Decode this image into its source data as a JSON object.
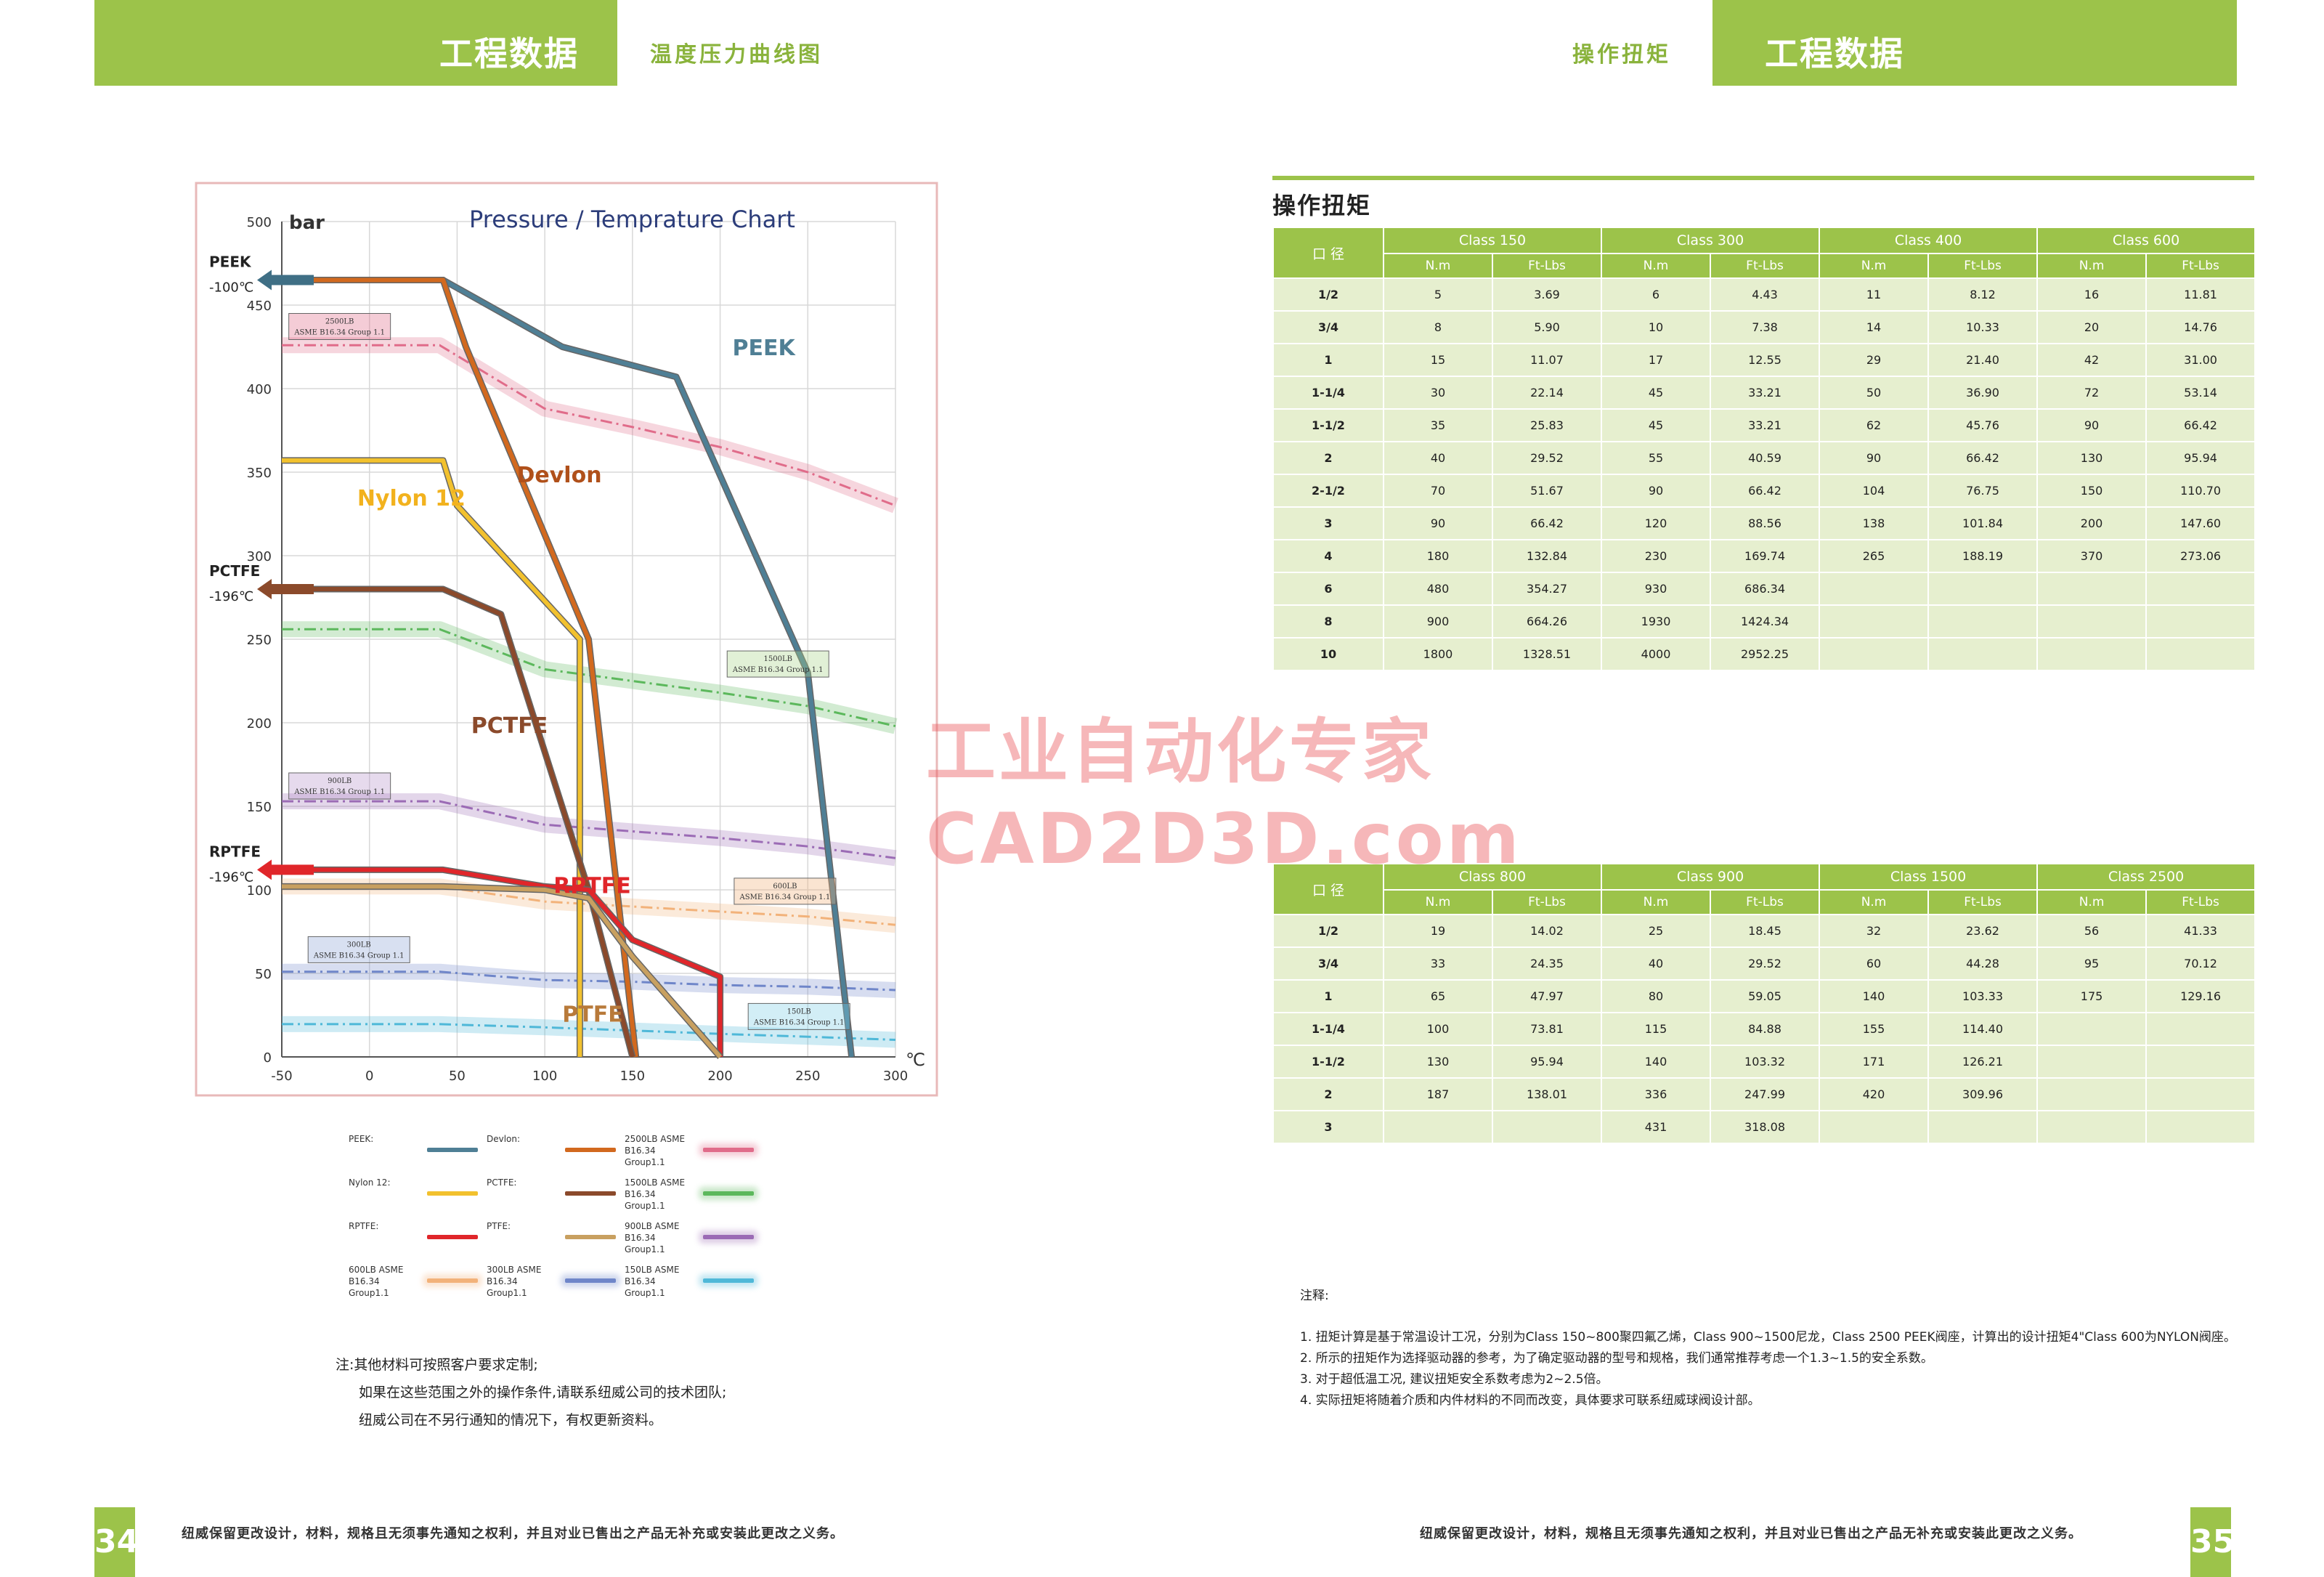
{
  "left_page": {
    "header_title": "工程数据",
    "header_subtitle": "温度压力曲线图",
    "page_number": "34",
    "footer": "纽威保留更改设计，材料，规格且无须事先通知之权利，并且对业已售出之产品无补充或安装此更改之义务。",
    "note_lines": [
      "注:其他材料可按照客户要求定制;",
      "如果在这些范围之外的操作条件,请联系纽威公司的技术团队;",
      "纽威公司在不另行通知的情况下，有权更新资料。"
    ]
  },
  "right_page": {
    "header_title": "工程数据",
    "header_subtitle": "操作扭矩",
    "page_number": "35",
    "footer": "纽威保留更改设计，材料，规格且无须事先通知之权利，并且对业已售出之产品无补充或安装此更改之义务。",
    "section_title": "操作扭矩",
    "notes_title": "注释:",
    "notes": [
      "1. 扭矩计算是基于常温设计工况，分别为Class 150~800聚四氟乙烯，Class 900~1500尼龙，Class 2500 PEEK阀座，计算出的设计扭矩4\"Class 600为NYLON阀座。",
      "2. 所示的扭矩作为选择驱动器的参考，为了确定驱动器的型号和规格，我们通常推荐考虑一个1.3~1.5的安全系数。",
      "3. 对于超低温工况, 建议扭矩安全系数考虑为2~2.5倍。",
      "4. 实际扭矩将随着介质和内件材料的不同而改变，具体要求可联系纽威球阀设计部。"
    ]
  },
  "watermark": {
    "line1": "工业自动化专家",
    "line2": "CAD2D3D.com"
  },
  "table1": {
    "size_header": "口 径",
    "unit_nm": "N.m",
    "unit_ft": "Ft-Lbs",
    "classes": [
      "Class 150",
      "Class 300",
      "Class 400",
      "Class 600"
    ],
    "rows": [
      [
        "1/2",
        "5",
        "3.69",
        "6",
        "4.43",
        "11",
        "8.12",
        "16",
        "11.81"
      ],
      [
        "3/4",
        "8",
        "5.90",
        "10",
        "7.38",
        "14",
        "10.33",
        "20",
        "14.76"
      ],
      [
        "1",
        "15",
        "11.07",
        "17",
        "12.55",
        "29",
        "21.40",
        "42",
        "31.00"
      ],
      [
        "1-1/4",
        "30",
        "22.14",
        "45",
        "33.21",
        "50",
        "36.90",
        "72",
        "53.14"
      ],
      [
        "1-1/2",
        "35",
        "25.83",
        "45",
        "33.21",
        "62",
        "45.76",
        "90",
        "66.42"
      ],
      [
        "2",
        "40",
        "29.52",
        "55",
        "40.59",
        "90",
        "66.42",
        "130",
        "95.94"
      ],
      [
        "2-1/2",
        "70",
        "51.67",
        "90",
        "66.42",
        "104",
        "76.75",
        "150",
        "110.70"
      ],
      [
        "3",
        "90",
        "66.42",
        "120",
        "88.56",
        "138",
        "101.84",
        "200",
        "147.60"
      ],
      [
        "4",
        "180",
        "132.84",
        "230",
        "169.74",
        "265",
        "188.19",
        "370",
        "273.06"
      ],
      [
        "6",
        "480",
        "354.27",
        "930",
        "686.34",
        "",
        "",
        "",
        ""
      ],
      [
        "8",
        "900",
        "664.26",
        "1930",
        "1424.34",
        "",
        "",
        "",
        ""
      ],
      [
        "10",
        "1800",
        "1328.51",
        "4000",
        "2952.25",
        "",
        "",
        "",
        ""
      ]
    ]
  },
  "table2": {
    "size_header": "口 径",
    "unit_nm": "N.m",
    "unit_ft": "Ft-Lbs",
    "classes": [
      "Class 800",
      "Class 900",
      "Class 1500",
      "Class 2500"
    ],
    "rows": [
      [
        "1/2",
        "19",
        "14.02",
        "25",
        "18.45",
        "32",
        "23.62",
        "56",
        "41.33"
      ],
      [
        "3/4",
        "33",
        "24.35",
        "40",
        "29.52",
        "60",
        "44.28",
        "95",
        "70.12"
      ],
      [
        "1",
        "65",
        "47.97",
        "80",
        "59.05",
        "140",
        "103.33",
        "175",
        "129.16"
      ],
      [
        "1-1/4",
        "100",
        "73.81",
        "115",
        "84.88",
        "155",
        "114.40",
        "",
        ""
      ],
      [
        "1-1/2",
        "130",
        "95.94",
        "140",
        "103.32",
        "171",
        "126.21",
        "",
        ""
      ],
      [
        "2",
        "187",
        "138.01",
        "336",
        "247.99",
        "420",
        "309.96",
        "",
        ""
      ],
      [
        "3",
        "",
        "",
        "431",
        "318.08",
        "",
        "",
        "",
        ""
      ]
    ]
  },
  "chart_data": {
    "type": "line",
    "title": "Pressure / Temprature Chart",
    "ylabel": "bar",
    "xlabel": "℃",
    "xlim": [
      -50,
      300
    ],
    "ylim": [
      0,
      500
    ],
    "xticks": [
      -50,
      0,
      50,
      100,
      150,
      200,
      250,
      300
    ],
    "yticks": [
      0,
      50,
      100,
      150,
      200,
      250,
      300,
      350,
      400,
      450,
      500
    ],
    "grid": true,
    "series": [
      {
        "name": "PEEK",
        "color": "#4f7f95",
        "points": [
          [
            -50,
            465
          ],
          [
            42,
            465
          ],
          [
            110,
            425
          ],
          [
            175,
            407
          ],
          [
            250,
            230
          ],
          [
            275,
            0
          ]
        ]
      },
      {
        "name": "Devlon",
        "color": "#d2691e",
        "points": [
          [
            -50,
            465
          ],
          [
            42,
            465
          ],
          [
            55,
            425
          ],
          [
            105,
            300
          ],
          [
            125,
            250
          ],
          [
            152,
            0
          ]
        ]
      },
      {
        "name": "Nylon 12",
        "color": "#f2c12e",
        "points": [
          [
            -50,
            357
          ],
          [
            42,
            357
          ],
          [
            50,
            330
          ],
          [
            120,
            250
          ],
          [
            120,
            0
          ]
        ]
      },
      {
        "name": "PCTFE",
        "color": "#8b4a2b",
        "points": [
          [
            -50,
            280
          ],
          [
            42,
            280
          ],
          [
            75,
            265
          ],
          [
            125,
            100
          ],
          [
            150,
            0
          ]
        ]
      },
      {
        "name": "RPTFE",
        "color": "#e0262a",
        "points": [
          [
            -50,
            112
          ],
          [
            42,
            112
          ],
          [
            100,
            102
          ],
          [
            125,
            100
          ],
          [
            150,
            70
          ],
          [
            200,
            48
          ],
          [
            200,
            0
          ]
        ]
      },
      {
        "name": "PTFE",
        "color": "#c8a060",
        "points": [
          [
            -50,
            102
          ],
          [
            42,
            102
          ],
          [
            100,
            100
          ],
          [
            125,
            95
          ],
          [
            150,
            60
          ],
          [
            200,
            0
          ]
        ]
      },
      {
        "name": "2500LB ASME B16.34 Group1.1",
        "color": "#e06c8a",
        "points": [
          [
            -50,
            426
          ],
          [
            40,
            426
          ],
          [
            100,
            388
          ],
          [
            150,
            377
          ],
          [
            200,
            365
          ],
          [
            250,
            350
          ],
          [
            300,
            330
          ]
        ]
      },
      {
        "name": "1500LB ASME B16.34 Group1.1",
        "color": "#5cb85c",
        "points": [
          [
            -50,
            256
          ],
          [
            40,
            256
          ],
          [
            100,
            232
          ],
          [
            150,
            225
          ],
          [
            200,
            218
          ],
          [
            250,
            210
          ],
          [
            300,
            198
          ]
        ]
      },
      {
        "name": "900LB ASME B16.34 Group1.1",
        "color": "#9b6bb5",
        "points": [
          [
            -50,
            153
          ],
          [
            40,
            153
          ],
          [
            100,
            139
          ],
          [
            150,
            135
          ],
          [
            200,
            131
          ],
          [
            250,
            126
          ],
          [
            300,
            119
          ]
        ]
      },
      {
        "name": "600LB ASME B16.34 Group1.1",
        "color": "#f2b27a",
        "points": [
          [
            -50,
            102
          ],
          [
            40,
            102
          ],
          [
            100,
            93
          ],
          [
            150,
            90
          ],
          [
            200,
            87
          ],
          [
            250,
            84
          ],
          [
            300,
            79
          ]
        ]
      },
      {
        "name": "300LB ASME B16.34 Group1.1",
        "color": "#6f86c9",
        "points": [
          [
            -50,
            51
          ],
          [
            40,
            51
          ],
          [
            100,
            46
          ],
          [
            150,
            45
          ],
          [
            200,
            43
          ],
          [
            250,
            42
          ],
          [
            300,
            40
          ]
        ]
      },
      {
        "name": "150LB ASME B16.34 Group1.1",
        "color": "#4fb8d8",
        "points": [
          [
            -50,
            19.6
          ],
          [
            40,
            19.6
          ],
          [
            100,
            17.7
          ],
          [
            150,
            15.8
          ],
          [
            200,
            13.8
          ],
          [
            250,
            12.1
          ],
          [
            300,
            10.2
          ]
        ]
      }
    ],
    "annotations": {
      "peek_label": "PEEK",
      "devlon_label": "Devlon",
      "nylon_label": "Nylon 12",
      "pctfe_label": "PCTFE",
      "rptfe_label": "RPTFE",
      "ptfe_label": "PTFE",
      "arrow_peek": [
        "PEEK",
        "-100℃"
      ],
      "arrow_pctfe": [
        "PCTFE",
        "-196℃"
      ],
      "arrow_rptfe": [
        "RPTFE",
        "-196℃"
      ],
      "box_2500": [
        "2500LB",
        "ASME B16.34 Group 1.1"
      ],
      "box_1500": [
        "1500LB",
        "ASME B16.34 Group 1.1"
      ],
      "box_900": [
        "900LB",
        "ASME B16.34 Group 1.1"
      ],
      "box_600": [
        "600LB",
        "ASME B16.34 Group 1.1"
      ],
      "box_300": [
        "300LB",
        "ASME B16.34 Group 1.1"
      ],
      "box_150": [
        "150LB",
        "ASME B16.34 Group 1.1"
      ]
    },
    "legend": [
      {
        "label": "PEEK:",
        "color": "#4f7f95"
      },
      {
        "label": "Devlon:",
        "color": "#d2691e"
      },
      {
        "label": "2500LB ASME B16.34 Group1.1",
        "color": "#e06c8a"
      },
      {
        "label": "Nylon 12:",
        "color": "#f2c12e"
      },
      {
        "label": "PCTFE:",
        "color": "#8b4a2b"
      },
      {
        "label": "1500LB ASME B16.34 Group1.1",
        "color": "#5cb85c"
      },
      {
        "label": "RPTFE:",
        "color": "#e0262a"
      },
      {
        "label": "PTFE:",
        "color": "#c8a060"
      },
      {
        "label": "900LB ASME B16.34 Group1.1",
        "color": "#9b6bb5"
      },
      {
        "label": "600LB ASME B16.34 Group1.1",
        "color": "#f2b27a"
      },
      {
        "label": "300LB ASME B16.34 Group1.1",
        "color": "#6f86c9"
      },
      {
        "label": "150LB ASME B16.34 Group1.1",
        "color": "#4fb8d8"
      }
    ]
  }
}
